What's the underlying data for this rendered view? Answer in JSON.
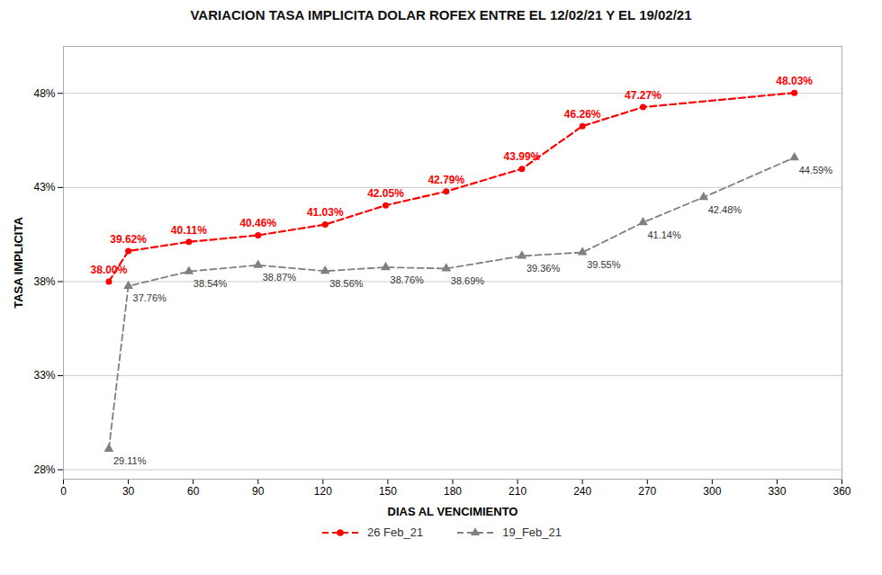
{
  "chart_data": {
    "type": "line",
    "title": "VARIACION TASA IMPLICITA DOLAR ROFEX ENTRE EL 12/02/21 Y EL 19/02/21",
    "xlabel": "DIAS AL VENCIMIENTO",
    "ylabel": "TASA IMPLICITA",
    "series": [
      {
        "name": "26 Feb_21",
        "color": "#FF0000",
        "marker": "circle",
        "line_style": "dashed",
        "x": [
          21,
          30,
          58,
          90,
          121,
          149,
          177,
          212,
          240,
          268,
          338
        ],
        "values": [
          38.0,
          39.62,
          40.11,
          40.46,
          41.03,
          42.05,
          42.79,
          43.99,
          46.26,
          47.27,
          48.03
        ],
        "value_labels": [
          "38.00%",
          "39.62%",
          "40.11%",
          "40.46%",
          "41.03%",
          "42.05%",
          "42.79%",
          "43.99%",
          "46.26%",
          "47.27%",
          "48.03%"
        ]
      },
      {
        "name": "19_Feb_21",
        "color": "#808080",
        "marker": "triangle",
        "line_style": "dashed",
        "x": [
          21,
          30,
          58,
          90,
          121,
          149,
          177,
          212,
          240,
          268,
          296,
          338
        ],
        "values": [
          29.11,
          37.76,
          38.54,
          38.87,
          38.56,
          38.76,
          38.69,
          39.36,
          39.55,
          41.14,
          42.48,
          44.59
        ],
        "value_labels": [
          "29.11%",
          "37.76%",
          "38.54%",
          "38.87%",
          "38.56%",
          "38.76%",
          "38.69%",
          "39.36%",
          "39.55%",
          "41.14%",
          "42.48%",
          "44.59%"
        ]
      }
    ],
    "xlim": [
      0,
      360
    ],
    "ylim": [
      27.5,
      50.5
    ],
    "xticks": [
      0,
      30,
      60,
      90,
      120,
      150,
      180,
      210,
      240,
      270,
      300,
      330,
      360
    ],
    "yticks": [
      {
        "value": 28,
        "label": "28%"
      },
      {
        "value": 33,
        "label": "33%"
      },
      {
        "value": 38,
        "label": "38%"
      },
      {
        "value": 43,
        "label": "43%"
      },
      {
        "value": 48,
        "label": "48%"
      }
    ],
    "grid": true,
    "data_labels": true,
    "legend": "bottom"
  }
}
